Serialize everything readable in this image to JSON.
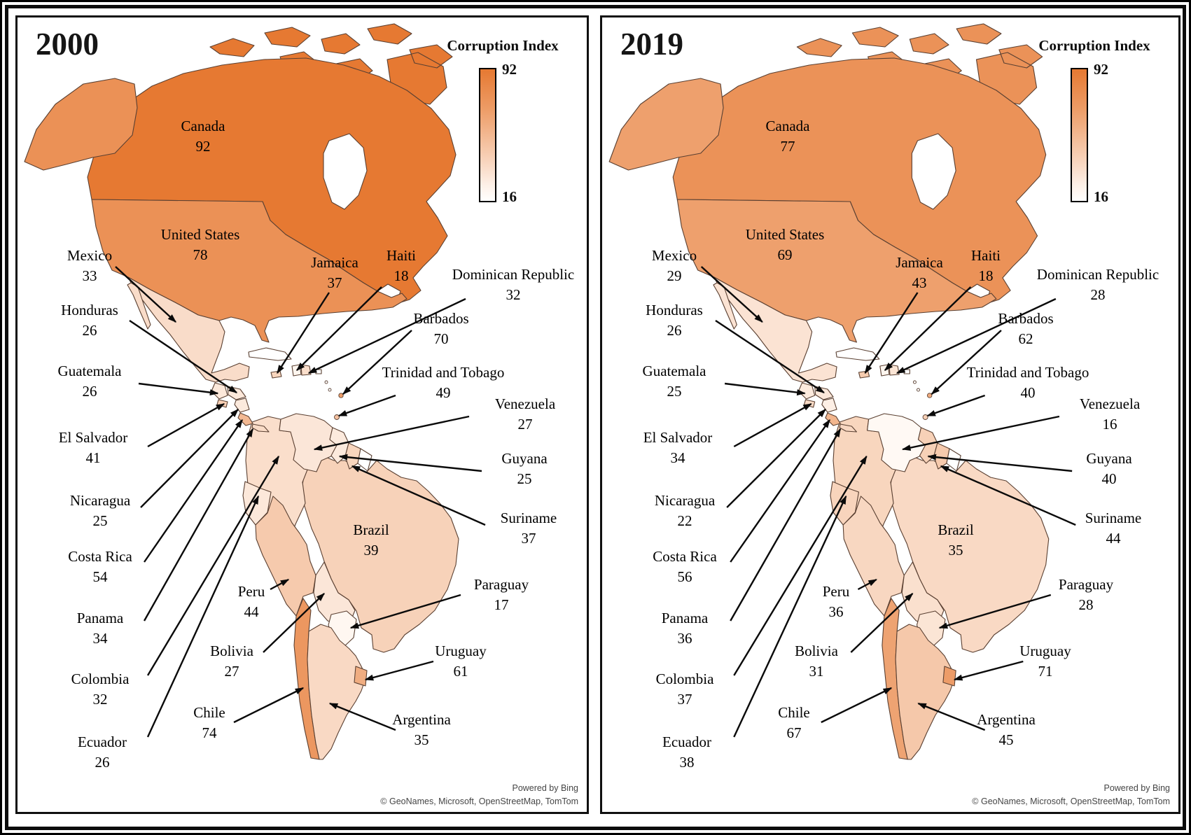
{
  "figure_title": "Corruption Index choropleth maps of the Americas, 2000 vs 2019",
  "color_scale": {
    "min_value": 16,
    "max_value": 92,
    "min_color": "#FFF9F4",
    "max_color": "#E67932",
    "nodata_color": "#FFFFFF",
    "border_color": "#5a4032"
  },
  "panels": [
    {
      "year": "2000",
      "legend": {
        "title": "Corruption Index",
        "max_label": "92",
        "min_label": "16"
      },
      "attribution": {
        "line1": "Powered by Bing",
        "line2": "© GeoNames, Microsoft, OpenStreetMap, TomTom"
      },
      "countries": {
        "canada": {
          "name": "Canada",
          "value": 92
        },
        "united_states": {
          "name": "United States",
          "value": 78
        },
        "mexico": {
          "name": "Mexico",
          "value": 33
        },
        "guatemala": {
          "name": "Guatemala",
          "value": 26
        },
        "honduras": {
          "name": "Honduras",
          "value": 26
        },
        "el_salvador": {
          "name": "El Salvador",
          "value": 41
        },
        "nicaragua": {
          "name": "Nicaragua",
          "value": 25
        },
        "costa_rica": {
          "name": "Costa Rica",
          "value": 54
        },
        "panama": {
          "name": "Panama",
          "value": 34
        },
        "jamaica": {
          "name": "Jamaica",
          "value": 37
        },
        "haiti": {
          "name": "Haiti",
          "value": 18
        },
        "dominican_republic": {
          "name": "Dominican Republic",
          "value": 32
        },
        "barbados": {
          "name": "Barbados",
          "value": 70
        },
        "trinidad_and_tobago": {
          "name": "Trinidad and Tobago",
          "value": 49
        },
        "venezuela": {
          "name": "Venezuela",
          "value": 27
        },
        "guyana": {
          "name": "Guyana",
          "value": 25
        },
        "suriname": {
          "name": "Suriname",
          "value": 37
        },
        "colombia": {
          "name": "Colombia",
          "value": 32
        },
        "ecuador": {
          "name": "Ecuador",
          "value": 26
        },
        "peru": {
          "name": "Peru",
          "value": 44
        },
        "brazil": {
          "name": "Brazil",
          "value": 39
        },
        "bolivia": {
          "name": "Bolivia",
          "value": 27
        },
        "paraguay": {
          "name": "Paraguay",
          "value": 17
        },
        "chile": {
          "name": "Chile",
          "value": 74
        },
        "argentina": {
          "name": "Argentina",
          "value": 35
        },
        "uruguay": {
          "name": "Uruguay",
          "value": 61
        }
      }
    },
    {
      "year": "2019",
      "legend": {
        "title": "Corruption Index",
        "max_label": "92",
        "min_label": "16"
      },
      "attribution": {
        "line1": "Powered by Bing",
        "line2": "© GeoNames, Microsoft, OpenStreetMap, TomTom"
      },
      "countries": {
        "canada": {
          "name": "Canada",
          "value": 77
        },
        "united_states": {
          "name": "United States",
          "value": 69
        },
        "mexico": {
          "name": "Mexico",
          "value": 29
        },
        "guatemala": {
          "name": "Guatemala",
          "value": 25
        },
        "honduras": {
          "name": "Honduras",
          "value": 26
        },
        "el_salvador": {
          "name": "El Salvador",
          "value": 34
        },
        "nicaragua": {
          "name": "Nicaragua",
          "value": 22
        },
        "costa_rica": {
          "name": "Costa Rica",
          "value": 56
        },
        "panama": {
          "name": "Panama",
          "value": 36
        },
        "jamaica": {
          "name": "Jamaica",
          "value": 43
        },
        "haiti": {
          "name": "Haiti",
          "value": 18
        },
        "dominican_republic": {
          "name": "Dominican Republic",
          "value": 28
        },
        "barbados": {
          "name": "Barbados",
          "value": 62
        },
        "trinidad_and_tobago": {
          "name": "Trinidad and Tobago",
          "value": 40
        },
        "venezuela": {
          "name": "Venezuela",
          "value": 16
        },
        "guyana": {
          "name": "Guyana",
          "value": 40
        },
        "suriname": {
          "name": "Suriname",
          "value": 44
        },
        "colombia": {
          "name": "Colombia",
          "value": 37
        },
        "ecuador": {
          "name": "Ecuador",
          "value": 38
        },
        "peru": {
          "name": "Peru",
          "value": 36
        },
        "brazil": {
          "name": "Brazil",
          "value": 35
        },
        "bolivia": {
          "name": "Bolivia",
          "value": 31
        },
        "paraguay": {
          "name": "Paraguay",
          "value": 28
        },
        "chile": {
          "name": "Chile",
          "value": 67
        },
        "argentina": {
          "name": "Argentina",
          "value": 45
        },
        "uruguay": {
          "name": "Uruguay",
          "value": 71
        }
      }
    }
  ],
  "chart_data": {
    "type": "heatmap",
    "subtype": "choropleth-map-pair",
    "title": "Corruption Index",
    "colorbar": {
      "label": "Corruption Index",
      "max": 92,
      "min": 16
    },
    "legend_position": "top-right of each map panel",
    "categories": [
      "Canada",
      "United States",
      "Mexico",
      "Guatemala",
      "Honduras",
      "El Salvador",
      "Nicaragua",
      "Costa Rica",
      "Panama",
      "Jamaica",
      "Haiti",
      "Dominican Republic",
      "Barbados",
      "Trinidad and Tobago",
      "Venezuela",
      "Guyana",
      "Suriname",
      "Colombia",
      "Ecuador",
      "Peru",
      "Brazil",
      "Bolivia",
      "Paraguay",
      "Chile",
      "Argentina",
      "Uruguay"
    ],
    "series": [
      {
        "name": "2000",
        "values": [
          92,
          78,
          33,
          26,
          26,
          41,
          25,
          54,
          34,
          37,
          18,
          32,
          70,
          49,
          27,
          25,
          37,
          32,
          26,
          44,
          39,
          27,
          17,
          74,
          35,
          61
        ]
      },
      {
        "name": "2019",
        "values": [
          77,
          69,
          29,
          25,
          26,
          34,
          22,
          56,
          36,
          43,
          18,
          28,
          62,
          40,
          16,
          40,
          44,
          37,
          38,
          36,
          35,
          31,
          28,
          67,
          45,
          71
        ]
      }
    ]
  }
}
